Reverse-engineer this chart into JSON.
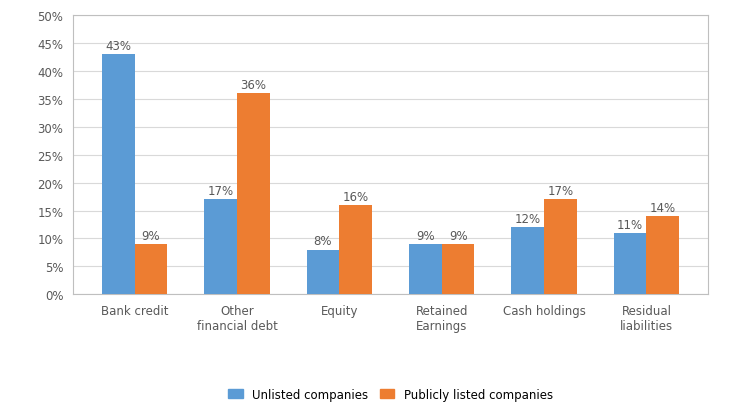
{
  "categories": [
    "Bank credit",
    "Other\nfinancial debt",
    "Equity",
    "Retained\nEarnings",
    "Cash holdings",
    "Residual\nliabilities"
  ],
  "unlisted": [
    43,
    17,
    8,
    9,
    12,
    11
  ],
  "listed": [
    9,
    36,
    16,
    9,
    17,
    14
  ],
  "unlisted_color": "#5B9BD5",
  "listed_color": "#ED7D31",
  "ylim": [
    0,
    50
  ],
  "yticks": [
    0,
    5,
    10,
    15,
    20,
    25,
    30,
    35,
    40,
    45,
    50
  ],
  "ytick_labels": [
    "0%",
    "5%",
    "10%",
    "15%",
    "20%",
    "25%",
    "30%",
    "35%",
    "40%",
    "45%",
    "50%"
  ],
  "legend_unlisted": "Unlisted companies",
  "legend_listed": "Publicly listed companies",
  "fig_bg_color": "#FFFFFF",
  "chart_bg_color": "#FFFFFF",
  "grid_color": "#D9D9D9",
  "bar_width": 0.32,
  "label_fontsize": 8.5,
  "tick_fontsize": 8.5,
  "legend_fontsize": 8.5,
  "spine_color": "#BFBFBF",
  "label_color": "#595959"
}
